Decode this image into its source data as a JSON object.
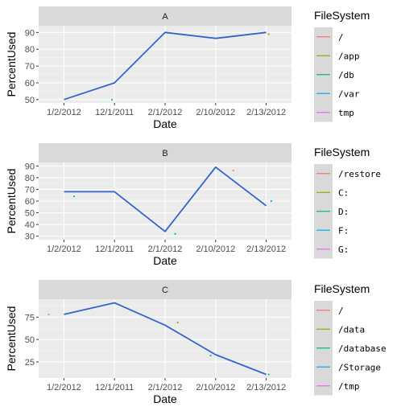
{
  "chart_data": [
    {
      "type": "line",
      "facet": "A",
      "xlabel": "Date",
      "ylabel": "PercentUsed",
      "categories": [
        "1/2/2012",
        "12/1/2011",
        "2/1/2012",
        "2/10/2012",
        "2/13/2012"
      ],
      "ylim": [
        48,
        94
      ],
      "yticks": [
        50,
        60,
        70,
        80,
        90
      ],
      "grid": true,
      "line_color": "#3366cc",
      "line": [
        50,
        60,
        90,
        86.5,
        90
      ],
      "points": [
        {
          "x": 0.95,
          "y": 50,
          "color": "#00b0f6"
        },
        {
          "x": 4.05,
          "y": 89,
          "color": "#a3a500"
        }
      ],
      "legend": {
        "title": "FileSystem",
        "placement": "right",
        "entries": [
          {
            "label": "/",
            "color": "#f8766d"
          },
          {
            "label": "/app",
            "color": "#a3a500"
          },
          {
            "label": "/db",
            "color": "#00bf7d"
          },
          {
            "label": "/var",
            "color": "#00b0f6"
          },
          {
            "label": "tmp",
            "color": "#e76bf3"
          }
        ]
      }
    },
    {
      "type": "line",
      "facet": "B",
      "xlabel": "Date",
      "ylabel": "PercentUsed",
      "categories": [
        "1/2/2012",
        "12/1/2011",
        "2/1/2012",
        "2/10/2012",
        "2/13/2012"
      ],
      "ylim": [
        27,
        93
      ],
      "yticks": [
        30,
        40,
        50,
        60,
        70,
        80,
        90
      ],
      "grid": true,
      "line_color": "#3366cc",
      "line": [
        68,
        68,
        34,
        89,
        56
      ],
      "points": [
        {
          "x": 0.2,
          "y": 64,
          "color": "#00bf7d"
        },
        {
          "x": 2.2,
          "y": 32,
          "color": "#00bf7d"
        },
        {
          "x": 3.35,
          "y": 86,
          "color": "#f8766d"
        },
        {
          "x": 4.1,
          "y": 60,
          "color": "#00b0f6"
        }
      ],
      "legend": {
        "title": "FileSystem",
        "placement": "right",
        "entries": [
          {
            "label": "/restore",
            "color": "#f8766d"
          },
          {
            "label": "C:",
            "color": "#a3a500"
          },
          {
            "label": "D:",
            "color": "#00bf7d"
          },
          {
            "label": "F:",
            "color": "#00b0f6"
          },
          {
            "label": "G:",
            "color": "#e76bf3"
          }
        ]
      }
    },
    {
      "type": "line",
      "facet": "C",
      "xlabel": "Date",
      "ylabel": "PercentUsed",
      "categories": [
        "1/2/2012",
        "12/1/2011",
        "2/1/2012",
        "2/10/2012",
        "2/13/2012"
      ],
      "ylim": [
        7,
        95
      ],
      "yticks": [
        25,
        50,
        75
      ],
      "grid": true,
      "line_color": "#3366cc",
      "line": [
        78,
        91,
        66,
        33,
        11
      ],
      "points": [
        {
          "x": -0.3,
          "y": 78,
          "color": "#e76bf3"
        },
        {
          "x": 2.25,
          "y": 69,
          "color": "#a3a500"
        },
        {
          "x": 2.9,
          "y": 32,
          "color": "#00b0f6"
        },
        {
          "x": 4.05,
          "y": 11,
          "color": "#00bf7d"
        }
      ],
      "legend": {
        "title": "FileSystem",
        "placement": "right",
        "entries": [
          {
            "label": "/",
            "color": "#f8766d"
          },
          {
            "label": "/data",
            "color": "#a3a500"
          },
          {
            "label": "/database",
            "color": "#00bf7d"
          },
          {
            "label": "/Storage",
            "color": "#00b0f6"
          },
          {
            "label": "/tmp",
            "color": "#e76bf3"
          }
        ]
      }
    }
  ]
}
